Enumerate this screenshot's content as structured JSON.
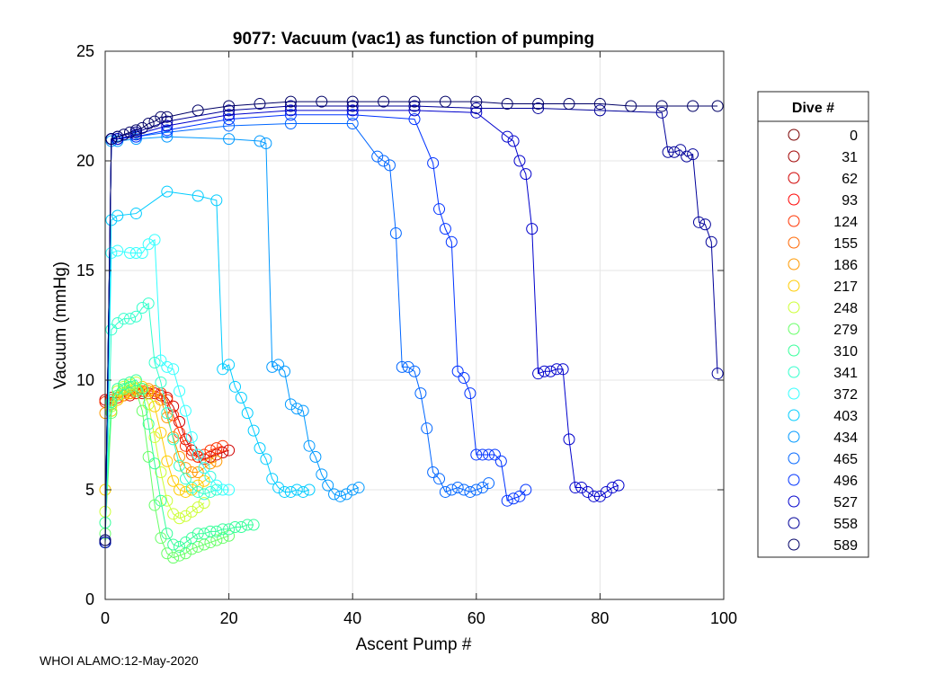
{
  "chart_data": {
    "type": "scatter",
    "title": "9077: Vacuum (vac1) as function of pumping",
    "xlabel": "Ascent Pump #",
    "ylabel": "Vacuum (mmHg)",
    "xlim": [
      0,
      100
    ],
    "ylim": [
      0,
      25
    ],
    "xticks": [
      "0",
      "20",
      "40",
      "60",
      "80",
      "100"
    ],
    "yticks": [
      "0",
      "5",
      "10",
      "15",
      "20",
      "25"
    ],
    "grid": true,
    "legend": {
      "title": "Dive #",
      "placement": "right",
      "entries": [
        "0",
        "31",
        "62",
        "93",
        "124",
        "155",
        "186",
        "217",
        "248",
        "279",
        "310",
        "341",
        "372",
        "403",
        "434",
        "465",
        "496",
        "527",
        "558",
        "589"
      ],
      "colors": [
        "#7a0000",
        "#a00000",
        "#d00000",
        "#ff0000",
        "#ff3300",
        "#ff6600",
        "#ff9900",
        "#ffcc00",
        "#ccff33",
        "#66ff66",
        "#33ff99",
        "#33ffcc",
        "#33ffff",
        "#00ccff",
        "#0099ff",
        "#0066ff",
        "#0033ff",
        "#0000cc",
        "#000099",
        "#000066"
      ]
    },
    "series": [
      {
        "name": "589",
        "x": [
          0,
          1,
          2,
          3,
          4,
          5,
          6,
          7,
          8,
          9,
          10,
          15,
          20,
          25,
          30,
          35,
          40,
          45,
          50,
          55,
          60,
          65,
          70,
          75,
          80,
          85,
          90,
          95,
          99
        ],
        "y": [
          2.7,
          21.0,
          21.1,
          21.2,
          21.3,
          21.4,
          21.5,
          21.7,
          21.8,
          22.0,
          22.0,
          22.3,
          22.5,
          22.6,
          22.7,
          22.7,
          22.7,
          22.7,
          22.7,
          22.7,
          22.7,
          22.6,
          22.6,
          22.6,
          22.6,
          22.5,
          22.5,
          22.5,
          22.5
        ]
      },
      {
        "name": "558",
        "x": [
          0,
          1,
          2,
          5,
          10,
          20,
          30,
          40,
          50,
          60,
          70,
          80,
          90,
          91,
          92,
          93,
          94,
          95,
          96,
          97,
          98,
          99
        ],
        "y": [
          2.6,
          21.0,
          21.1,
          21.3,
          21.8,
          22.3,
          22.5,
          22.5,
          22.5,
          22.4,
          22.4,
          22.3,
          22.2,
          20.4,
          20.4,
          20.5,
          20.2,
          20.3,
          17.2,
          17.1,
          16.3,
          10.3
        ]
      },
      {
        "name": "527",
        "x": [
          0,
          1,
          2,
          5,
          10,
          20,
          30,
          40,
          50,
          60,
          65,
          66,
          67,
          68,
          69,
          70,
          71,
          72,
          73,
          74,
          75,
          76,
          77,
          78,
          79,
          80,
          81,
          82,
          83
        ],
        "y": [
          2.7,
          21.0,
          21.0,
          21.2,
          21.6,
          22.1,
          22.3,
          22.3,
          22.3,
          22.2,
          21.1,
          20.9,
          20.0,
          19.4,
          16.9,
          10.3,
          10.4,
          10.4,
          10.5,
          10.5,
          7.3,
          5.1,
          5.1,
          4.9,
          4.7,
          4.7,
          4.9,
          5.1,
          5.2
        ]
      },
      {
        "name": "496",
        "x": [
          0,
          1,
          2,
          5,
          10,
          20,
          30,
          40,
          50,
          53,
          54,
          55,
          56,
          57,
          58,
          59,
          60,
          61,
          62,
          63,
          64,
          65,
          66,
          67,
          68
        ],
        "y": [
          2.6,
          21.0,
          21.0,
          21.1,
          21.4,
          21.9,
          22.1,
          22.1,
          21.9,
          19.9,
          17.8,
          16.9,
          16.3,
          10.4,
          10.1,
          9.4,
          6.6,
          6.6,
          6.6,
          6.6,
          6.3,
          4.5,
          4.6,
          4.7,
          5.0
        ]
      },
      {
        "name": "465",
        "x": [
          0,
          1,
          2,
          5,
          10,
          20,
          30,
          40,
          44,
          45,
          46,
          47,
          48,
          49,
          50,
          51,
          52,
          53,
          54,
          55,
          56,
          57,
          58,
          59,
          60,
          61,
          62
        ],
        "y": [
          2.6,
          21.0,
          21.0,
          21.1,
          21.3,
          21.6,
          21.7,
          21.7,
          20.2,
          20.0,
          19.8,
          16.7,
          10.6,
          10.6,
          10.4,
          9.4,
          7.8,
          5.8,
          5.5,
          4.9,
          5.0,
          5.1,
          5.0,
          4.9,
          5.0,
          5.1,
          5.3
        ]
      },
      {
        "name": "434",
        "x": [
          0,
          1,
          2,
          5,
          10,
          20,
          25,
          26,
          27,
          28,
          29,
          30,
          31,
          32,
          33,
          34,
          35,
          36,
          37,
          38,
          39,
          40,
          41
        ],
        "y": [
          2.6,
          20.9,
          20.9,
          21.0,
          21.1,
          21.0,
          20.9,
          20.8,
          10.6,
          10.7,
          10.4,
          8.9,
          8.7,
          8.6,
          7.0,
          6.5,
          5.7,
          5.2,
          4.8,
          4.7,
          4.8,
          5.0,
          5.1
        ]
      },
      {
        "name": "403",
        "x": [
          0,
          1,
          2,
          5,
          10,
          15,
          18,
          19,
          20,
          21,
          22,
          23,
          24,
          25,
          26,
          27,
          28,
          29,
          30,
          31,
          32,
          33
        ],
        "y": [
          2.6,
          17.3,
          17.5,
          17.6,
          18.6,
          18.4,
          18.2,
          10.5,
          10.7,
          9.7,
          9.2,
          8.5,
          7.7,
          6.9,
          6.4,
          5.5,
          5.1,
          4.9,
          4.9,
          5.0,
          4.9,
          5.0
        ]
      },
      {
        "name": "372",
        "x": [
          0,
          1,
          2,
          4,
          5,
          6,
          7,
          8,
          9,
          10,
          11,
          12,
          13,
          14,
          15,
          16,
          17,
          18,
          19,
          20
        ],
        "y": [
          2.6,
          15.8,
          15.9,
          15.8,
          15.8,
          15.8,
          16.2,
          16.4,
          10.9,
          10.6,
          10.5,
          9.5,
          8.6,
          7.4,
          6.6,
          6.0,
          5.6,
          5.2,
          5.0,
          5.0
        ]
      },
      {
        "name": "341",
        "x": [
          0,
          1,
          2,
          3,
          4,
          5,
          6,
          7,
          8,
          9,
          10,
          11,
          12,
          13,
          14,
          15,
          16,
          17,
          18
        ],
        "y": [
          2.6,
          12.3,
          12.6,
          12.8,
          12.8,
          12.9,
          13.3,
          13.5,
          10.8,
          9.9,
          8.5,
          7.3,
          6.1,
          5.5,
          5.1,
          4.9,
          4.8,
          4.9,
          5.0
        ]
      },
      {
        "name": "310",
        "x": [
          0,
          1,
          2,
          3,
          4,
          5,
          6,
          7,
          8,
          9,
          10,
          11,
          12,
          13,
          14,
          15,
          16,
          17,
          18,
          19,
          20,
          21,
          22,
          23,
          24
        ],
        "y": [
          3.5,
          9.0,
          9.6,
          9.8,
          9.9,
          10.0,
          9.6,
          8.0,
          6.2,
          4.5,
          3.0,
          2.5,
          2.4,
          2.6,
          2.8,
          3.0,
          3.0,
          3.1,
          3.1,
          3.2,
          3.2,
          3.3,
          3.3,
          3.4,
          3.4
        ]
      },
      {
        "name": "279",
        "x": [
          0,
          1,
          2,
          3,
          4,
          5,
          6,
          7,
          8,
          9,
          10,
          11,
          12,
          13,
          14,
          15,
          16,
          17,
          18,
          19,
          20
        ],
        "y": [
          3.0,
          8.5,
          9.3,
          9.6,
          9.7,
          9.5,
          8.6,
          6.5,
          4.3,
          2.8,
          2.1,
          1.9,
          2.0,
          2.1,
          2.3,
          2.4,
          2.5,
          2.6,
          2.7,
          2.8,
          2.9
        ]
      },
      {
        "name": "248",
        "x": [
          0,
          1,
          2,
          3,
          4,
          5,
          6,
          7,
          8,
          9,
          10,
          11,
          12,
          13,
          14,
          15,
          16
        ],
        "y": [
          4.0,
          8.8,
          9.5,
          9.7,
          9.8,
          9.9,
          9.6,
          8.9,
          7.4,
          5.8,
          4.5,
          3.9,
          3.7,
          3.8,
          4.0,
          4.2,
          4.4
        ]
      },
      {
        "name": "217",
        "x": [
          0,
          1,
          2,
          3,
          4,
          5,
          6,
          7,
          8,
          9,
          10,
          11,
          12,
          13,
          14,
          15,
          16,
          17
        ],
        "y": [
          5.0,
          8.6,
          9.1,
          9.4,
          9.5,
          9.6,
          9.7,
          9.5,
          8.8,
          7.6,
          6.3,
          5.4,
          5.0,
          4.9,
          5.0,
          5.2,
          5.4,
          5.6
        ]
      },
      {
        "name": "186",
        "x": [
          0,
          1,
          2,
          3,
          4,
          5,
          6,
          7,
          8,
          9,
          10,
          11,
          12,
          13,
          14,
          15,
          16,
          17,
          18
        ],
        "y": [
          8.5,
          8.9,
          9.1,
          9.3,
          9.4,
          9.5,
          9.6,
          9.6,
          9.5,
          9.1,
          8.3,
          7.4,
          6.5,
          6.0,
          5.8,
          5.8,
          6.0,
          6.2,
          6.3
        ]
      },
      {
        "name": "124",
        "x": [
          0,
          1,
          2,
          3,
          4,
          5,
          6,
          7,
          8,
          9,
          10,
          11,
          12,
          13,
          14,
          15,
          16,
          17,
          18,
          19
        ],
        "y": [
          9.0,
          9.1,
          9.2,
          9.3,
          9.4,
          9.4,
          9.5,
          9.5,
          9.5,
          9.4,
          9.1,
          8.4,
          7.6,
          7.0,
          6.6,
          6.5,
          6.6,
          6.8,
          6.9,
          7.0
        ]
      },
      {
        "name": "62",
        "x": [
          0,
          1,
          2,
          3,
          4,
          5,
          6,
          7,
          8,
          9,
          10,
          11,
          12,
          13,
          14,
          15,
          16,
          17,
          18,
          19,
          20
        ],
        "y": [
          9.1,
          9.2,
          9.2,
          9.3,
          9.3,
          9.4,
          9.4,
          9.4,
          9.4,
          9.3,
          9.2,
          8.8,
          8.1,
          7.3,
          6.8,
          6.5,
          6.4,
          6.5,
          6.6,
          6.7,
          6.8
        ]
      }
    ]
  },
  "footer": "WHOI ALAMO:12-May-2020"
}
